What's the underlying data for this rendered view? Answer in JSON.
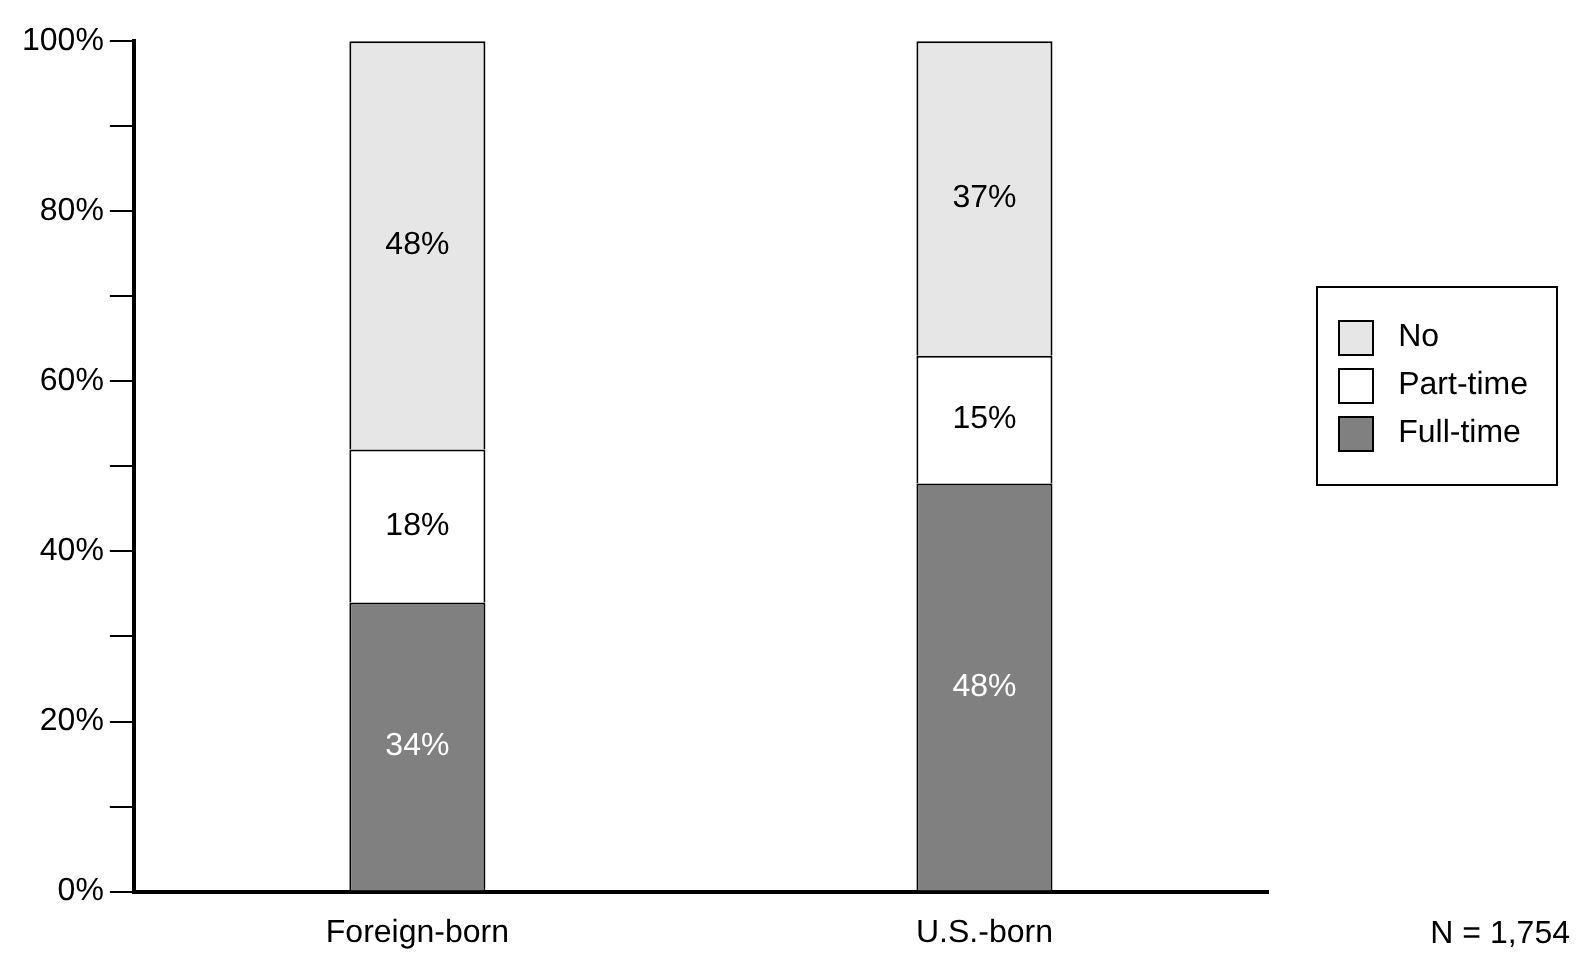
{
  "chart_data": {
    "type": "bar",
    "stacked": true,
    "categories": [
      "Foreign-born",
      "U.S.-born"
    ],
    "series": [
      {
        "name": "Full-time",
        "color": "#808080",
        "values": [
          34,
          48
        ],
        "value_labels": [
          "34%",
          "48%"
        ]
      },
      {
        "name": "Part-time",
        "color": "#ffffff",
        "values": [
          18,
          15
        ],
        "value_labels": [
          "18%",
          "15%"
        ]
      },
      {
        "name": "No",
        "color": "#e6e6e6",
        "values": [
          48,
          37
        ],
        "value_labels": [
          "48%",
          "37%"
        ]
      }
    ],
    "ylim": [
      0,
      100
    ],
    "yticks": [
      {
        "value": 0,
        "label": "0%"
      },
      {
        "value": 10,
        "label": null
      },
      {
        "value": 20,
        "label": "20%"
      },
      {
        "value": 30,
        "label": null
      },
      {
        "value": 40,
        "label": "40%"
      },
      {
        "value": 50,
        "label": null
      },
      {
        "value": 60,
        "label": "60%"
      },
      {
        "value": 70,
        "label": null
      },
      {
        "value": 80,
        "label": "80%"
      },
      {
        "value": 90,
        "label": null
      },
      {
        "value": 100,
        "label": "100%"
      }
    ],
    "legend": "right",
    "grid": false,
    "annotations": [
      "N = 1,754"
    ]
  }
}
